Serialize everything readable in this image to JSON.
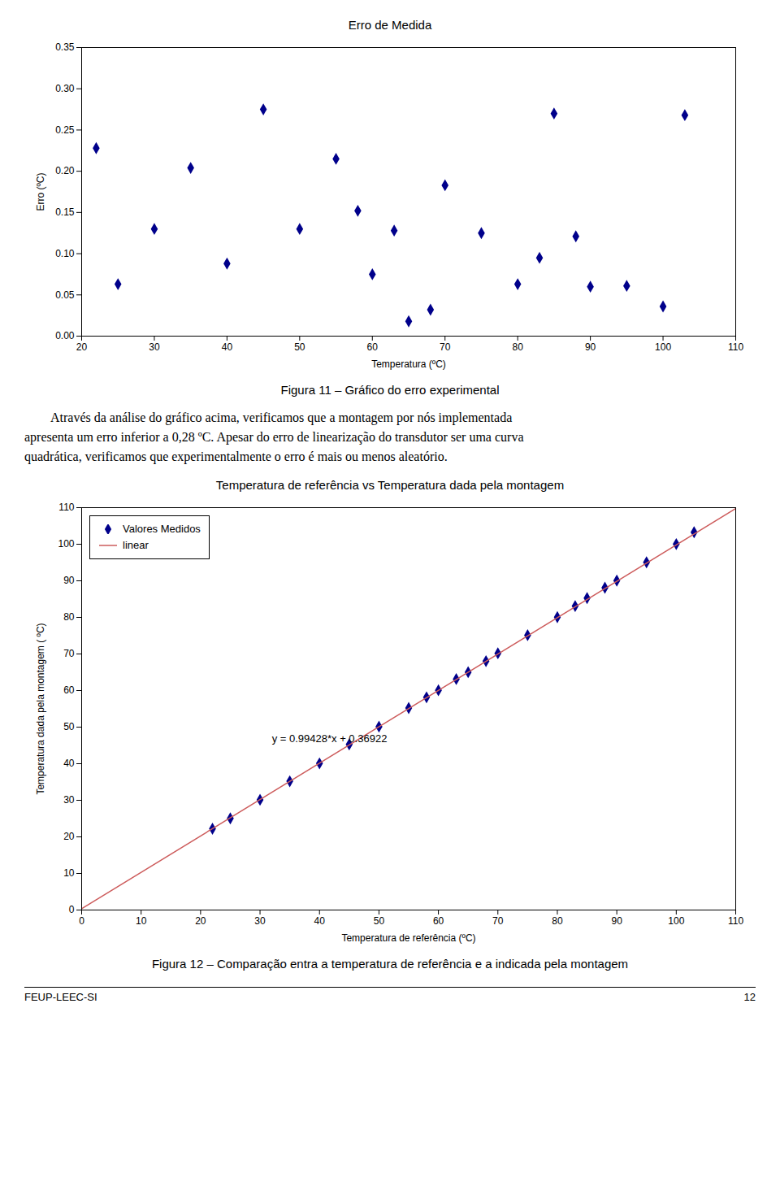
{
  "chart_data": [
    {
      "type": "scatter",
      "title": "Erro de Medida",
      "xlabel": "Temperatura (ºC)",
      "ylabel": "Erro (ºC)",
      "xlim": [
        20,
        110
      ],
      "ylim": [
        0,
        0.35
      ],
      "xticks": [
        20,
        30,
        40,
        50,
        60,
        70,
        80,
        90,
        100,
        110
      ],
      "yticks": [
        {
          "value": 0,
          "label": "0.00"
        },
        0.05,
        {
          "value": 0.1,
          "label": "0.10"
        },
        0.15,
        {
          "value": 0.2,
          "label": "0.20"
        },
        0.25,
        {
          "value": 0.3,
          "label": "0.30"
        },
        0.35
      ],
      "x": [
        22,
        25,
        30,
        35,
        40,
        45,
        50,
        55,
        58,
        60,
        63,
        65,
        68,
        70,
        75,
        80,
        83,
        85,
        88,
        90,
        95,
        100,
        103
      ],
      "values": [
        0.228,
        0.063,
        0.13,
        0.204,
        0.088,
        0.275,
        0.13,
        0.215,
        0.152,
        0.075,
        0.128,
        0.018,
        0.032,
        0.183,
        0.125,
        0.063,
        0.095,
        0.27,
        0.121,
        0.06,
        0.061,
        0.036,
        0.268
      ],
      "color": "#00008B",
      "marker": "diamond",
      "grid": false,
      "caption": "Figura 11 – Gráfico do erro experimental"
    },
    {
      "type": "scatter",
      "title": "Temperatura de referência vs Temperatura dada pela montagem",
      "xlabel": "Temperatura de referência (ºC)",
      "ylabel": "Temperatura dada pela montagem ( ºC)",
      "xlim": [
        0,
        110
      ],
      "ylim": [
        0,
        110
      ],
      "xticks": [
        0,
        10,
        20,
        30,
        40,
        50,
        60,
        70,
        80,
        90,
        100,
        110
      ],
      "yticks": [
        0,
        10,
        20,
        30,
        40,
        50,
        60,
        70,
        80,
        90,
        100,
        110
      ],
      "series": [
        {
          "name": "Valores Medidos",
          "type": "scatter",
          "color": "#00008B",
          "marker": "diamond",
          "x": [
            22,
            25,
            30,
            35,
            40,
            45,
            50,
            55,
            58,
            60,
            63,
            65,
            68,
            70,
            75,
            80,
            83,
            85,
            88,
            90,
            95,
            100,
            103
          ],
          "values": [
            22.228,
            25.063,
            30.13,
            35.204,
            40.088,
            45.275,
            50.13,
            55.215,
            58.152,
            60.075,
            63.128,
            65.018,
            68.032,
            70.183,
            75.125,
            80.063,
            83.095,
            85.27,
            88.121,
            90.06,
            95.061,
            100.036,
            103.268
          ]
        },
        {
          "name": "linear",
          "type": "line",
          "color": "#CD5C5C",
          "line_style": "solid",
          "x": [
            0,
            110
          ],
          "values": [
            0.36922,
            109.74002
          ]
        }
      ],
      "annotations": [
        {
          "text": "y = 0.99428*x + 0.36922",
          "x": 32,
          "y": 46
        }
      ],
      "legend": "upper left",
      "grid": false,
      "caption": "Figura 12 – Comparação entra a temperatura de referência e a indicada pela montagem"
    }
  ],
  "paragraph": [
    "Através da análise do gráfico acima, verificamos que a montagem por nós implementada",
    "apresenta um erro inferior a 0,28 ºC. Apesar do erro de linearização do transdutor ser uma curva",
    "quadrática, verificamos que experimentalmente o erro é mais ou menos aleatório."
  ],
  "footer": [
    "FEUP-LEEC-SI",
    "12"
  ]
}
